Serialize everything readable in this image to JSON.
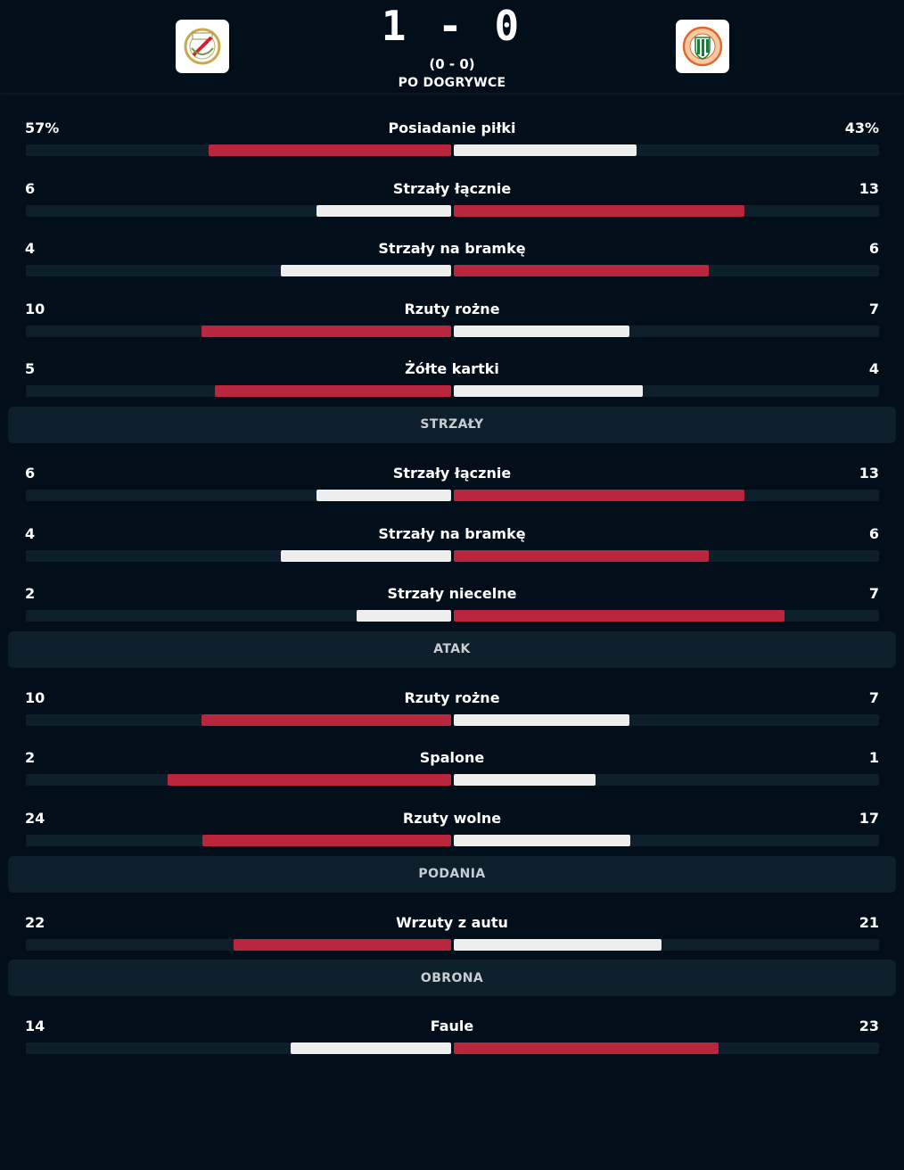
{
  "match": {
    "score": "1 - 0",
    "halftime": "(0 - 0)",
    "status": "PO DOGRYWCE",
    "home_logo_icon": "club-crest-icon",
    "away_logo_icon": "club-crest-icon"
  },
  "colors": {
    "background": "#020f1a",
    "track": "#0e1f2c",
    "leader_bar": "#b9263d",
    "other_bar": "#eeeeee"
  },
  "sections": [
    {
      "title": "",
      "rows": [
        {
          "name": "Posiadanie piłki",
          "home": "57%",
          "away": "43%",
          "home_share": 0.57,
          "away_share": 0.43
        },
        {
          "name": "Strzały łącznie",
          "home": "6",
          "away": "13",
          "home_share": 0.316,
          "away_share": 0.684
        },
        {
          "name": "Strzały na bramkę",
          "home": "4",
          "away": "6",
          "home_share": 0.4,
          "away_share": 0.6
        },
        {
          "name": "Rzuty rożne",
          "home": "10",
          "away": "7",
          "home_share": 0.588,
          "away_share": 0.412
        },
        {
          "name": "Żółte kartki",
          "home": "5",
          "away": "4",
          "home_share": 0.556,
          "away_share": 0.444
        }
      ]
    },
    {
      "title": "STRZAŁY",
      "rows": [
        {
          "name": "Strzały łącznie",
          "home": "6",
          "away": "13",
          "home_share": 0.316,
          "away_share": 0.684
        },
        {
          "name": "Strzały na bramkę",
          "home": "4",
          "away": "6",
          "home_share": 0.4,
          "away_share": 0.6
        },
        {
          "name": "Strzały niecelne",
          "home": "2",
          "away": "7",
          "home_share": 0.222,
          "away_share": 0.778
        }
      ]
    },
    {
      "title": "ATAK",
      "rows": [
        {
          "name": "Rzuty rożne",
          "home": "10",
          "away": "7",
          "home_share": 0.588,
          "away_share": 0.412
        },
        {
          "name": "Spalone",
          "home": "2",
          "away": "1",
          "home_share": 0.667,
          "away_share": 0.333
        },
        {
          "name": "Rzuty wolne",
          "home": "24",
          "away": "17",
          "home_share": 0.585,
          "away_share": 0.415
        }
      ]
    },
    {
      "title": "PODANIA",
      "rows": [
        {
          "name": "Wrzuty z autu",
          "home": "22",
          "away": "21",
          "home_share": 0.512,
          "away_share": 0.488
        }
      ]
    },
    {
      "title": "OBRONA",
      "rows": [
        {
          "name": "Faule",
          "home": "14",
          "away": "23",
          "home_share": 0.378,
          "away_share": 0.622
        }
      ]
    }
  ]
}
